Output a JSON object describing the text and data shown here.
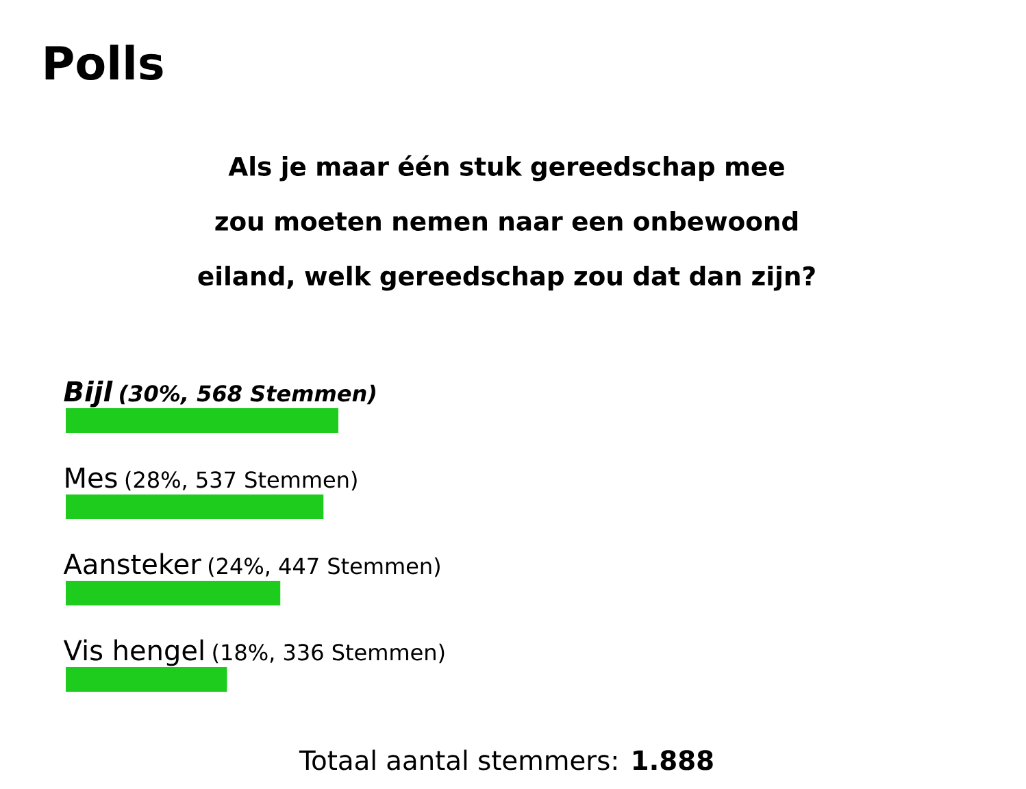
{
  "chart_data": {
    "type": "bar",
    "orientation": "horizontal",
    "title": "Polls",
    "subtitle": "Als je maar één stuk gereedschap mee zou moeten nemen naar een onbewoond eiland, welk gereedschap zou dat dan zijn?",
    "categories": [
      "Bijl",
      "Mes",
      "Aansteker",
      "Vis hengel"
    ],
    "values": [
      568,
      537,
      447,
      336
    ],
    "value_labels": [
      "(30%, 568 Stemmen)",
      "(28%, 537 Stemmen)",
      "(24%, 447 Stemmen)",
      "(18%, 336 Stemmen)"
    ],
    "color": "#1ecc1e",
    "annotations": [
      "Totaal aantal stemmers: **1.888**"
    ]
  }
}
